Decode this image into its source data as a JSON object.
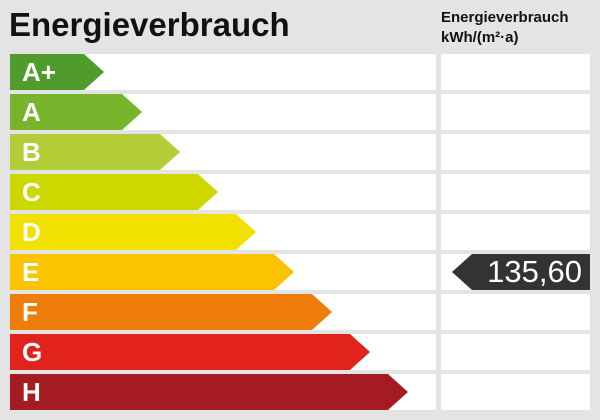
{
  "title": "Energieverbrauch",
  "column_header": {
    "line1": "Energieverbrauch",
    "line2": "kWh/(m²·a)"
  },
  "classes": [
    {
      "label": "A+",
      "color": "#4f9b2b"
    },
    {
      "label": "A",
      "color": "#78b52c"
    },
    {
      "label": "B",
      "color": "#b3cd38"
    },
    {
      "label": "C",
      "color": "#cdd800"
    },
    {
      "label": "D",
      "color": "#f2e000"
    },
    {
      "label": "E",
      "color": "#fbc400"
    },
    {
      "label": "F",
      "color": "#ee7d0b"
    },
    {
      "label": "G",
      "color": "#e2231d"
    },
    {
      "label": "H",
      "color": "#a41c22"
    }
  ],
  "indicator": {
    "value": "135,60",
    "class": "E",
    "color": "#333333"
  }
}
